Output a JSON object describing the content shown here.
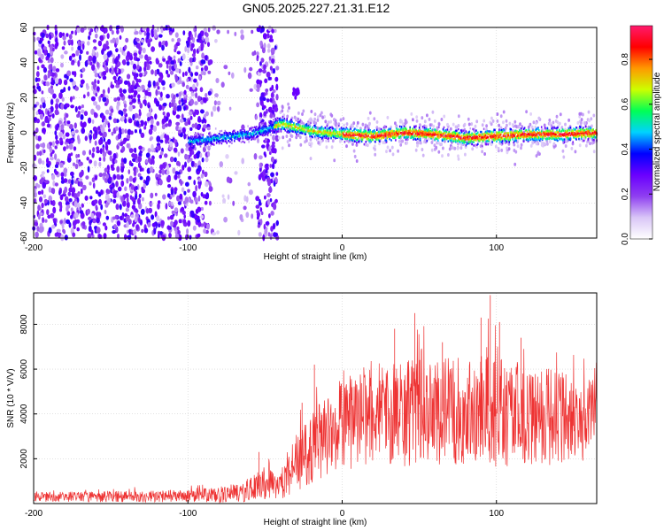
{
  "page": {
    "title": "GN05.2025.227.21.31.E12"
  },
  "chart_data": [
    {
      "type": "heatmap",
      "xlabel": "Height of straight line (km)",
      "ylabel": "Frequency (Hz)",
      "xlim": [
        -200,
        165
      ],
      "ylim": [
        -60,
        60
      ],
      "x_ticks": [
        "-200",
        "-100",
        "0",
        "100"
      ],
      "y_ticks": [
        "60",
        "40",
        "20",
        "0",
        "-20",
        "-40",
        "-60"
      ],
      "grid": true,
      "colorbar": {
        "label": "Normalized spectral amplitude",
        "range": [
          0.0,
          0.95
        ],
        "ticks": [
          "0.0",
          "0.2",
          "0.4",
          "0.6",
          "0.8"
        ],
        "colormap": [
          "#ffffff",
          "#d9c6f7",
          "#8f3ff0",
          "#6a00ff",
          "#0000ff",
          "#00d2ff",
          "#00ff55",
          "#ccff00",
          "#ff9900",
          "#ff0000",
          "#ff1a6e"
        ]
      },
      "features": {
        "noise_region_x": [
          -200,
          -42
        ],
        "noise_density_drop_x": -85,
        "stripe_x": [
          -55,
          -42
        ],
        "ridge": {
          "x": [
            -100,
            -80,
            -60,
            -45,
            -40,
            -20,
            0,
            20,
            40,
            60,
            80,
            100,
            120,
            140,
            165
          ],
          "y": [
            -5,
            -3,
            -1,
            3,
            5,
            1,
            -1,
            -2,
            0,
            -1,
            -3,
            -2,
            -1,
            -1,
            0
          ]
        },
        "blob": {
          "x": -30,
          "y": 23
        }
      }
    },
    {
      "type": "line",
      "xlabel": "Height of straight line (km)",
      "ylabel": "SNR (10 * V/V)",
      "xlim": [
        -200,
        165
      ],
      "ylim": [
        0,
        9400
      ],
      "x_ticks": [
        "-200",
        "-100",
        "0",
        "100"
      ],
      "y_ticks": [
        "2000",
        "4000",
        "6000",
        "8000"
      ],
      "grid": true,
      "color": "#ee3333",
      "envelope": {
        "x": [
          -200,
          -100,
          -80,
          -60,
          -50,
          -42,
          -35,
          -30,
          -20,
          -10,
          0,
          10,
          20,
          40,
          60,
          80,
          100,
          120,
          140,
          165
        ],
        "mean": [
          300,
          330,
          380,
          600,
          900,
          700,
          1200,
          1800,
          2500,
          3000,
          3400,
          3700,
          3900,
          4000,
          4100,
          4150,
          4100,
          4000,
          3800,
          3700
        ],
        "amplitude": [
          250,
          300,
          400,
          600,
          900,
          600,
          1000,
          1400,
          1800,
          2000,
          2200,
          2300,
          2500,
          2600,
          2700,
          2700,
          2800,
          2600,
          2300,
          2000
        ]
      },
      "peaks": [
        {
          "x": -54,
          "y": 2300
        },
        {
          "x": -26,
          "y": 4500
        },
        {
          "x": -18,
          "y": 6200
        },
        {
          "x": 34,
          "y": 7800
        },
        {
          "x": 47,
          "y": 8500
        },
        {
          "x": 65,
          "y": 7200
        },
        {
          "x": 90,
          "y": 8300
        },
        {
          "x": 96,
          "y": 9300
        },
        {
          "x": 102,
          "y": 8100
        },
        {
          "x": 116,
          "y": 7400
        }
      ]
    }
  ]
}
